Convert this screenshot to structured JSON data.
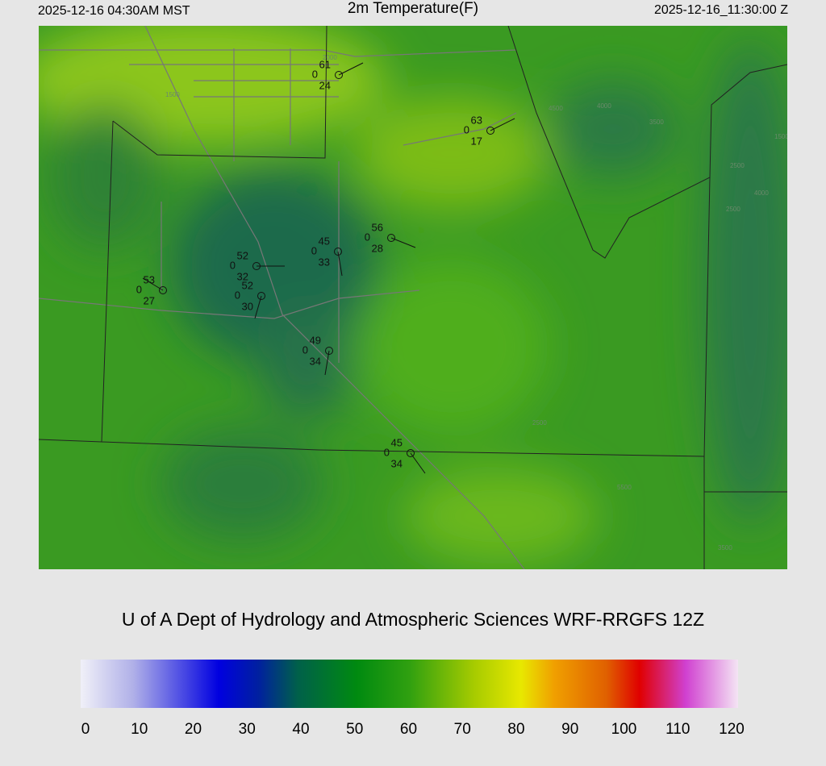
{
  "header": {
    "local_time": "2025-12-16 04:30AM MST",
    "title": "2m Temperature(F)",
    "utc_time": "2025-12-16_11:30:00 Z"
  },
  "stations": [
    {
      "temperature": 61,
      "code": 0,
      "dewpoint": 24
    },
    {
      "temperature": 63,
      "code": 0,
      "dewpoint": 17
    },
    {
      "temperature": 56,
      "code": 0,
      "dewpoint": 28
    },
    {
      "temperature": 45,
      "code": 0,
      "dewpoint": 33
    },
    {
      "temperature": 52,
      "code": 0,
      "dewpoint": 32
    },
    {
      "temperature": 53,
      "code": 0,
      "dewpoint": 27
    },
    {
      "temperature": 52,
      "code": 0,
      "dewpoint": 30
    },
    {
      "temperature": 49,
      "code": 0,
      "dewpoint": 34
    },
    {
      "temperature": 45,
      "code": 0,
      "dewpoint": 34
    }
  ],
  "contour_labels": [
    "1500",
    "2000",
    "1500",
    "4500",
    "4000",
    "3500",
    "2500",
    "4000",
    "2500",
    "5500",
    "2500",
    "3500"
  ],
  "credit": "U of A Dept of Hydrology and Atmospheric Sciences WRF-RRGFS 12Z",
  "colorbar": {
    "ticks": [
      0,
      10,
      20,
      30,
      40,
      50,
      60,
      70,
      80,
      90,
      100,
      110,
      120
    ]
  }
}
